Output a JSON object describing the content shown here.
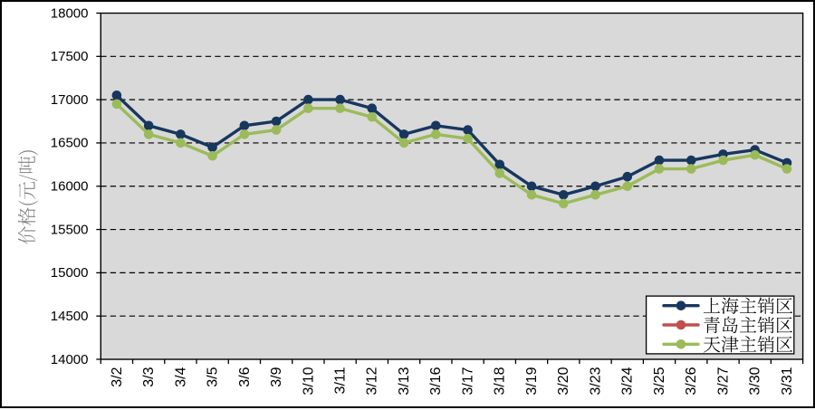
{
  "chart_data": {
    "type": "line",
    "title": "",
    "ylabel": "价格(元/吨)",
    "xlabel": "",
    "categories": [
      "3/2",
      "3/3",
      "3/4",
      "3/5",
      "3/6",
      "3/9",
      "3/10",
      "3/11",
      "3/12",
      "3/13",
      "3/16",
      "3/17",
      "3/18",
      "3/19",
      "3/20",
      "3/23",
      "3/24",
      "3/25",
      "3/26",
      "3/27",
      "3/30",
      "3/31"
    ],
    "series": [
      {
        "name": "上海主销区",
        "color": "#17375E",
        "values": [
          17050,
          16700,
          16600,
          16450,
          16700,
          16750,
          17000,
          17000,
          16900,
          16600,
          16700,
          16650,
          16250,
          16000,
          15900,
          16000,
          16110,
          16300,
          16300,
          16370,
          16420,
          16270
        ]
      },
      {
        "name": "青岛主销区",
        "color": "#C0504D",
        "values": [
          16950,
          16600,
          16500,
          16350,
          16600,
          16650,
          16900,
          16900,
          16800,
          16500,
          16600,
          16550,
          16150,
          15900,
          15800,
          15900,
          16000,
          16200,
          16200,
          16300,
          16360,
          16200
        ]
      },
      {
        "name": "天津主销区",
        "color": "#9BBB59",
        "values": [
          16950,
          16600,
          16500,
          16350,
          16600,
          16650,
          16900,
          16900,
          16800,
          16500,
          16600,
          16550,
          16150,
          15900,
          15800,
          15900,
          16000,
          16200,
          16200,
          16300,
          16360,
          16200
        ]
      }
    ],
    "ylim": [
      14000,
      18000
    ],
    "ytick_step": 500,
    "yticks": [
      "14000",
      "14500",
      "15000",
      "15500",
      "16000",
      "16500",
      "17000",
      "17500",
      "18000"
    ],
    "grid": "horizontal-dashed",
    "legend_position": "inside-bottom-right",
    "plot_bg_color": "#D9D9D9",
    "axis_text_color": "#000000",
    "ylabel_color": "#808080",
    "marker_style": "circle"
  }
}
